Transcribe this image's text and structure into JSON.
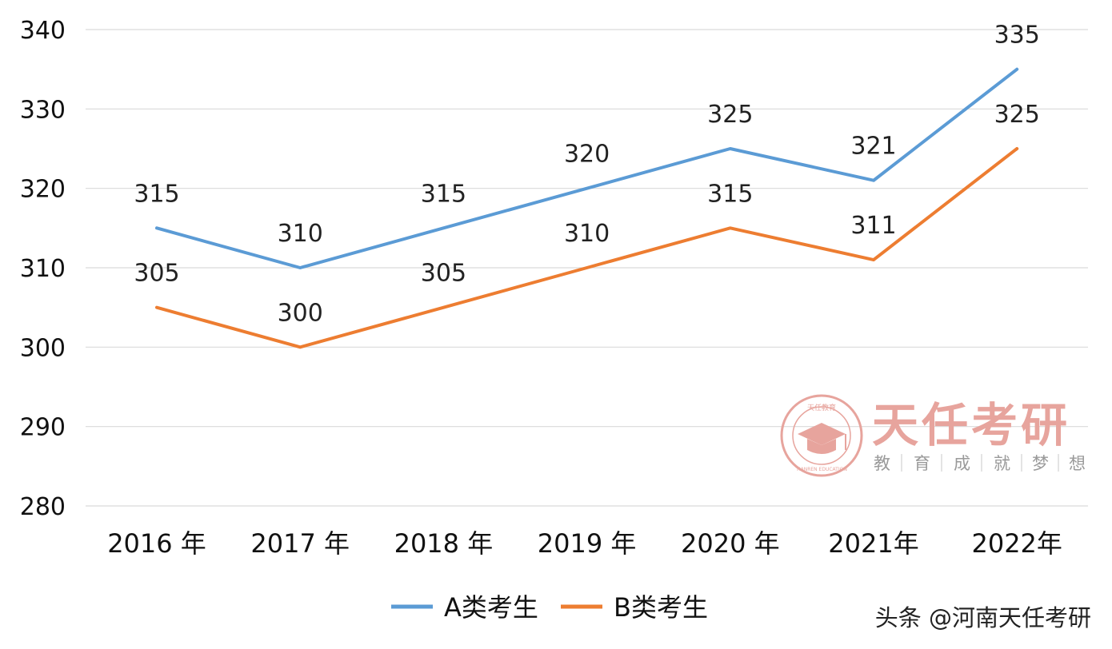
{
  "chart_data": {
    "type": "line",
    "categories": [
      "2016 年",
      "2017 年",
      "2018 年",
      "2019 年",
      "2020 年",
      "2021年",
      "2022年"
    ],
    "series": [
      {
        "name": "A类考生",
        "color": "#5b9bd5",
        "values": [
          315,
          310,
          315,
          320,
          325,
          321,
          335
        ]
      },
      {
        "name": "B类考生",
        "color": "#ed7d31",
        "values": [
          305,
          300,
          305,
          310,
          315,
          311,
          325
        ]
      }
    ],
    "y_ticks": [
      "340",
      "330",
      "320",
      "310",
      "300",
      "290",
      "280"
    ],
    "ylim": [
      280,
      340
    ],
    "grid": true,
    "data_labels": true,
    "legend_position": "bottom-center"
  },
  "watermark": {
    "title": "天任考研",
    "slogan": [
      "教",
      "育",
      "成",
      "就",
      "梦",
      "想"
    ],
    "logo_text": "天任教育",
    "logo_subtext": "TIANREN EDUCATION",
    "colors": {
      "logo": "#e7a49d",
      "slogan": "#9a9a9a"
    }
  },
  "credit": "头条 @河南天任考研"
}
